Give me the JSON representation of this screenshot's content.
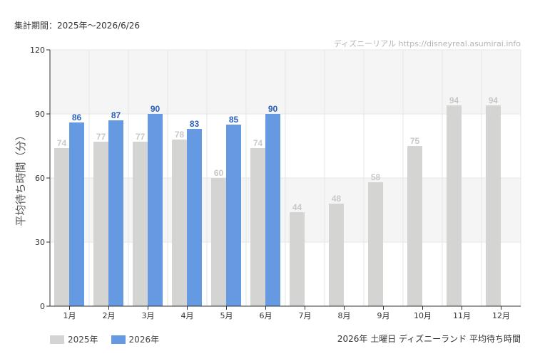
{
  "header": {
    "period": "集計期間：2025年～2026/6/26",
    "site": "ディズニーリアル https://disneyreal.asumirai.info"
  },
  "footer": {
    "chart_note": "2026年 土曜日 ディズニーランド 平均待ち時間"
  },
  "chart_data": {
    "type": "bar",
    "ylabel": "平均待ち時間（分）",
    "categories": [
      "1月",
      "2月",
      "3月",
      "4月",
      "5月",
      "6月",
      "7月",
      "8月",
      "9月",
      "10月",
      "11月",
      "12月"
    ],
    "ylim": [
      0,
      120
    ],
    "yticks": [
      0,
      30,
      60,
      90,
      120
    ],
    "series": [
      {
        "name": "2025年",
        "color": "#d4d4d2",
        "label_color": "#c8c8c8",
        "values": [
          74,
          77,
          77,
          78,
          60,
          74,
          44,
          48,
          58,
          75,
          94,
          94
        ]
      },
      {
        "name": "2026年",
        "color": "#6599e2",
        "label_color": "#2a5fc0",
        "values": [
          86,
          87,
          90,
          83,
          85,
          90,
          null,
          null,
          null,
          null,
          null,
          null
        ]
      }
    ],
    "grid": true,
    "legend_position": "bottom-left"
  }
}
